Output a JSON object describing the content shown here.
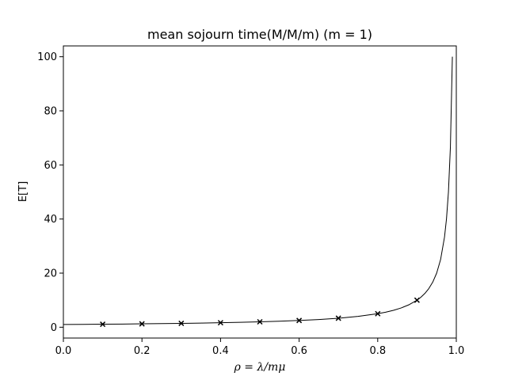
{
  "chart_data": {
    "type": "line",
    "title": "mean sojourn time(M/M/m) (m = 1)",
    "xlabel": "ρ = λ/mμ",
    "ylabel": "E[T]",
    "xlim": [
      0.0,
      1.0
    ],
    "ylim": [
      -4,
      104
    ],
    "xticks": [
      0.0,
      0.2,
      0.4,
      0.6,
      0.8,
      1.0
    ],
    "xtick_labels": [
      "0.0",
      "0.2",
      "0.4",
      "0.6",
      "0.8",
      "1.0"
    ],
    "yticks": [
      0,
      20,
      40,
      60,
      80,
      100
    ],
    "ytick_labels": [
      "0",
      "20",
      "40",
      "60",
      "80",
      "100"
    ],
    "grid": false,
    "series": [
      {
        "style": "line",
        "color": "#000000",
        "x": [
          0.0,
          0.05,
          0.1,
          0.15,
          0.2,
          0.25,
          0.3,
          0.35,
          0.4,
          0.45,
          0.5,
          0.55,
          0.6,
          0.65,
          0.7,
          0.75,
          0.8,
          0.82,
          0.84,
          0.86,
          0.88,
          0.9,
          0.91,
          0.92,
          0.93,
          0.94,
          0.95,
          0.96,
          0.97,
          0.975,
          0.98,
          0.985,
          0.99
        ],
        "y": [
          1.0,
          1.053,
          1.111,
          1.176,
          1.25,
          1.333,
          1.429,
          1.538,
          1.667,
          1.818,
          2.0,
          2.222,
          2.5,
          2.857,
          3.333,
          4.0,
          5.0,
          5.556,
          6.25,
          7.143,
          8.333,
          10.0,
          11.111,
          12.5,
          14.286,
          16.667,
          20.0,
          25.0,
          33.333,
          40.0,
          50.0,
          66.667,
          100.0
        ]
      },
      {
        "style": "markers",
        "marker": "x",
        "color": "#000000",
        "x": [
          0.1,
          0.2,
          0.3,
          0.4,
          0.5,
          0.6,
          0.7,
          0.8,
          0.9
        ],
        "y": [
          1.111,
          1.25,
          1.429,
          1.667,
          2.0,
          2.5,
          3.333,
          5.0,
          10.0
        ]
      }
    ]
  }
}
